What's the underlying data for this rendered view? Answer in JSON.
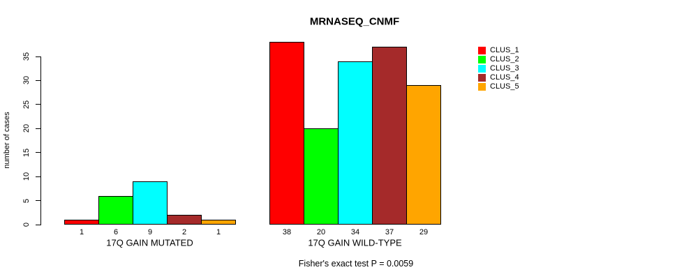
{
  "title": "MRNASEQ_CNMF",
  "footer": "Fisher's exact test P = 0.0059",
  "y_axis": {
    "label": "number of cases",
    "ticks": [
      0,
      5,
      10,
      15,
      20,
      25,
      30,
      35
    ]
  },
  "legend": {
    "items": [
      {
        "label": "CLUS_1",
        "color": "#ff0000"
      },
      {
        "label": "CLUS_2",
        "color": "#00ff00"
      },
      {
        "label": "CLUS_3",
        "color": "#00ffff"
      },
      {
        "label": "CLUS_4",
        "color": "#a52a2a"
      },
      {
        "label": "CLUS_5",
        "color": "#ffa500"
      }
    ]
  },
  "chart_data": {
    "type": "bar",
    "title": "MRNASEQ_CNMF",
    "xlabel": "",
    "ylabel": "number of cases",
    "ylim": [
      0,
      35
    ],
    "yticks": [
      0,
      5,
      10,
      15,
      20,
      25,
      30,
      35
    ],
    "grid": false,
    "legend_position": "right",
    "categories": [
      "17Q GAIN MUTATED",
      "17Q GAIN WILD-TYPE"
    ],
    "series": [
      {
        "name": "CLUS_1",
        "color": "#ff0000",
        "values": [
          1,
          38
        ]
      },
      {
        "name": "CLUS_2",
        "color": "#00ff00",
        "values": [
          6,
          20
        ]
      },
      {
        "name": "CLUS_3",
        "color": "#00ffff",
        "values": [
          9,
          34
        ]
      },
      {
        "name": "CLUS_4",
        "color": "#a52a2a",
        "values": [
          2,
          37
        ]
      },
      {
        "name": "CLUS_5",
        "color": "#ffa500",
        "values": [
          1,
          29
        ]
      }
    ],
    "bar_value_labels": true,
    "annotation": "Fisher's exact test P = 0.0059"
  }
}
